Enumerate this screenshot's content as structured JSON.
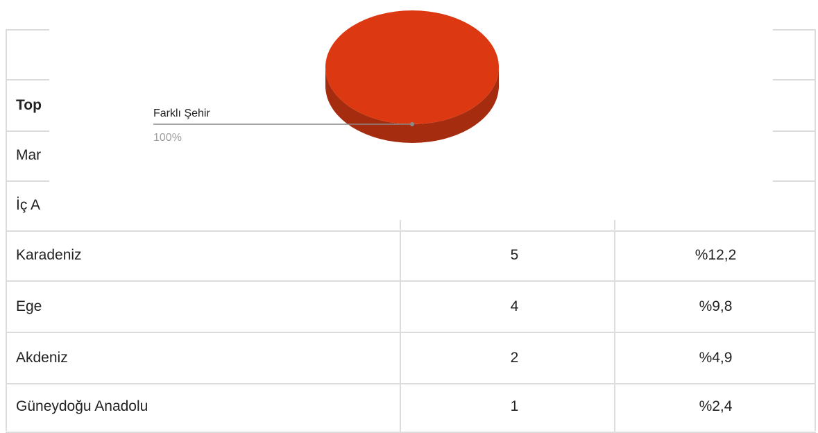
{
  "chart_data": {
    "type": "pie",
    "slices": [
      {
        "label": "Farklı Şehir",
        "value": 100,
        "display": "100%",
        "color": "#dc3912",
        "shadow": "#a52c0e"
      }
    ]
  },
  "table": {
    "header_label": "Top",
    "rows_partial": [
      {
        "label": "Mar"
      },
      {
        "label": "İç A"
      }
    ],
    "rows": [
      {
        "label": "Karadeniz",
        "count": "5",
        "percent": "%12,2"
      },
      {
        "label": "Ege",
        "count": "4",
        "percent": "%9,8"
      },
      {
        "label": "Akdeniz",
        "count": "2",
        "percent": "%4,9"
      },
      {
        "label": "Güneydoğu Anadolu",
        "count": "1",
        "percent": "%2,4"
      }
    ]
  }
}
